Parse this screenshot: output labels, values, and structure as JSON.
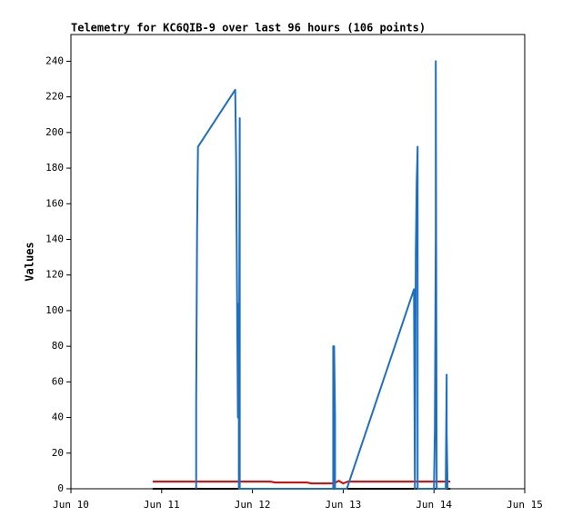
{
  "chart_data": {
    "type": "line",
    "title": "Telemetry for KC6QIB-9 over last 96 hours (106 points)",
    "y_label": "Values",
    "xlim": [
      10,
      15
    ],
    "xticks": [
      {
        "value": 10,
        "label": "Jun 10"
      },
      {
        "value": 11,
        "label": "Jun 11"
      },
      {
        "value": 12,
        "label": "Jun 12"
      },
      {
        "value": 13,
        "label": "Jun 13"
      },
      {
        "value": 14,
        "label": "Jun 14"
      },
      {
        "value": 15,
        "label": "Jun 15"
      }
    ],
    "ylim": [
      0,
      255
    ],
    "yticks": [
      0,
      20,
      40,
      60,
      80,
      100,
      120,
      140,
      160,
      180,
      200,
      220,
      240
    ],
    "series": [
      {
        "color": "#000000",
        "x": [
          10.9,
          14.18
        ],
        "values": [
          0,
          0
        ]
      },
      {
        "color": "#dd0000",
        "x": [
          10.9,
          12.2,
          12.25,
          12.6,
          12.65,
          12.9,
          12.95,
          13.0,
          13.05,
          14.18
        ],
        "values": [
          4,
          4,
          3.5,
          3.5,
          3,
          3,
          4.5,
          3,
          4,
          4
        ]
      },
      {
        "color": "#1f6fc0",
        "x": [
          11.38,
          11.38,
          11.39,
          11.4,
          11.81,
          11.82,
          11.83,
          11.84,
          11.85,
          11.85,
          11.86,
          11.86,
          12.89,
          12.89,
          12.9,
          12.91,
          12.91,
          13.04,
          13.78,
          13.79,
          13.8,
          13.81,
          13.82,
          13.82,
          14.0,
          14.01,
          14.02,
          14.02,
          14.03,
          14.13,
          14.14,
          14.14,
          14.15
        ],
        "values": [
          0,
          48,
          145,
          192,
          224,
          186,
          113,
          40,
          104,
          0,
          208,
          0,
          0,
          80,
          80,
          40,
          0,
          0,
          112,
          0,
          132,
          172,
          192,
          0,
          0,
          32,
          144,
          240,
          0,
          0,
          64,
          32,
          0
        ]
      }
    ]
  }
}
